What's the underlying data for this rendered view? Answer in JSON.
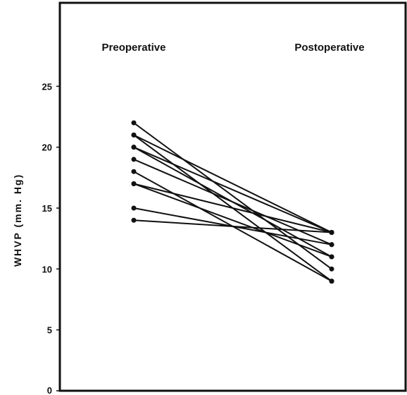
{
  "chart_data": {
    "type": "line",
    "title": "",
    "categories": [
      "Preoperative",
      "Postoperative"
    ],
    "xlabel": "",
    "ylabel": "WHVP (mm. Hg)",
    "ylim": [
      0,
      30
    ],
    "yticks": [
      0,
      5,
      10,
      15,
      20,
      25
    ],
    "ytick_labels": [
      "0",
      "5",
      "10",
      "15",
      "20",
      "25"
    ],
    "grid": false,
    "legend": "none",
    "series": [
      {
        "values": [
          22,
          10
        ]
      },
      {
        "values": [
          21,
          13
        ]
      },
      {
        "values": [
          21,
          9
        ]
      },
      {
        "values": [
          20,
          11
        ]
      },
      {
        "values": [
          20,
          13
        ]
      },
      {
        "values": [
          19,
          12
        ]
      },
      {
        "values": [
          18,
          9
        ]
      },
      {
        "values": [
          17,
          13
        ]
      },
      {
        "values": [
          17,
          11
        ]
      },
      {
        "values": [
          15,
          12
        ]
      },
      {
        "values": [
          14,
          13
        ]
      }
    ]
  }
}
